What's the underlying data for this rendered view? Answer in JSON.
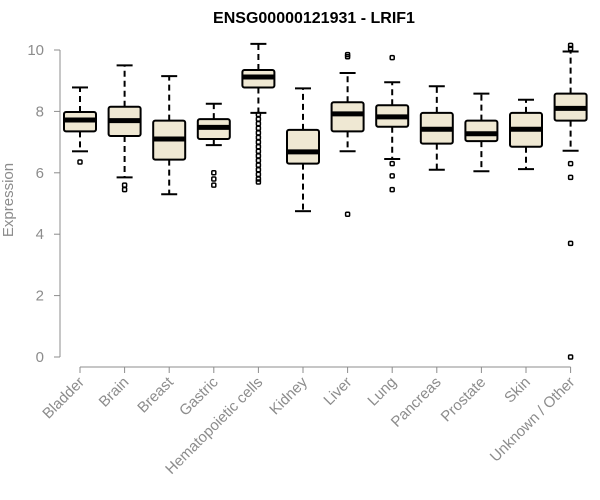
{
  "chart_data": {
    "type": "box",
    "title": "ENSG00000121931 - LRIF1",
    "ylabel": "Expression",
    "xlabel": "",
    "ylim": [
      0,
      10
    ],
    "yticks": [
      0,
      2,
      4,
      6,
      8,
      10
    ],
    "grid": false,
    "categories": [
      "Bladder",
      "Brain",
      "Breast",
      "Gastric",
      "Hematopoietic cells",
      "Kidney",
      "Liver",
      "Lung",
      "Pancreas",
      "Prostate",
      "Skin",
      "Unknown / Other"
    ],
    "boxes": [
      {
        "category": "Bladder",
        "whisker_low": 6.7,
        "q1": 7.35,
        "median": 7.72,
        "q3": 7.98,
        "whisker_high": 8.78,
        "outliers": [
          6.35
        ]
      },
      {
        "category": "Brain",
        "whisker_low": 5.85,
        "q1": 7.2,
        "median": 7.7,
        "q3": 8.15,
        "whisker_high": 9.5,
        "outliers": [
          5.6,
          5.45
        ]
      },
      {
        "category": "Breast",
        "whisker_low": 5.3,
        "q1": 6.43,
        "median": 7.1,
        "q3": 7.7,
        "whisker_high": 9.15,
        "outliers": []
      },
      {
        "category": "Gastric",
        "whisker_low": 6.9,
        "q1": 7.1,
        "median": 7.48,
        "q3": 7.75,
        "whisker_high": 8.25,
        "outliers": [
          6.0,
          5.8,
          5.6
        ]
      },
      {
        "category": "Hematopoietic cells",
        "whisker_low": 7.95,
        "q1": 8.78,
        "median": 9.12,
        "q3": 9.35,
        "whisker_high": 10.2,
        "outliers": [
          7.9,
          7.75,
          7.6,
          7.45,
          7.3,
          7.15,
          7.0,
          6.85,
          6.7,
          6.55,
          6.4,
          6.25,
          6.1,
          5.95,
          5.8,
          5.7
        ]
      },
      {
        "category": "Kidney",
        "whisker_low": 4.75,
        "q1": 6.3,
        "median": 6.68,
        "q3": 7.4,
        "whisker_high": 8.75,
        "outliers": []
      },
      {
        "category": "Liver",
        "whisker_low": 6.7,
        "q1": 7.35,
        "median": 7.92,
        "q3": 8.3,
        "whisker_high": 9.25,
        "outliers": [
          9.85,
          9.78,
          4.65
        ]
      },
      {
        "category": "Lung",
        "whisker_low": 6.45,
        "q1": 7.5,
        "median": 7.82,
        "q3": 8.2,
        "whisker_high": 8.95,
        "outliers": [
          9.75,
          6.3,
          5.9,
          5.45
        ]
      },
      {
        "category": "Pancreas",
        "whisker_low": 6.1,
        "q1": 6.95,
        "median": 7.42,
        "q3": 7.95,
        "whisker_high": 8.82,
        "outliers": []
      },
      {
        "category": "Prostate",
        "whisker_low": 6.05,
        "q1": 7.03,
        "median": 7.27,
        "q3": 7.7,
        "whisker_high": 8.58,
        "outliers": []
      },
      {
        "category": "Skin",
        "whisker_low": 6.12,
        "q1": 6.85,
        "median": 7.42,
        "q3": 7.95,
        "whisker_high": 8.38,
        "outliers": []
      },
      {
        "category": "Unknown / Other",
        "whisker_low": 6.72,
        "q1": 7.7,
        "median": 8.1,
        "q3": 8.58,
        "whisker_high": 9.95,
        "outliers": [
          10.15,
          10.05,
          6.3,
          5.85,
          3.7,
          0.0
        ]
      }
    ],
    "colors": {
      "box_fill": "#efe8d3",
      "box_stroke": "#000000",
      "axis": "#8c8c8c",
      "text": "#8c8c8c",
      "title": "#000000"
    }
  }
}
